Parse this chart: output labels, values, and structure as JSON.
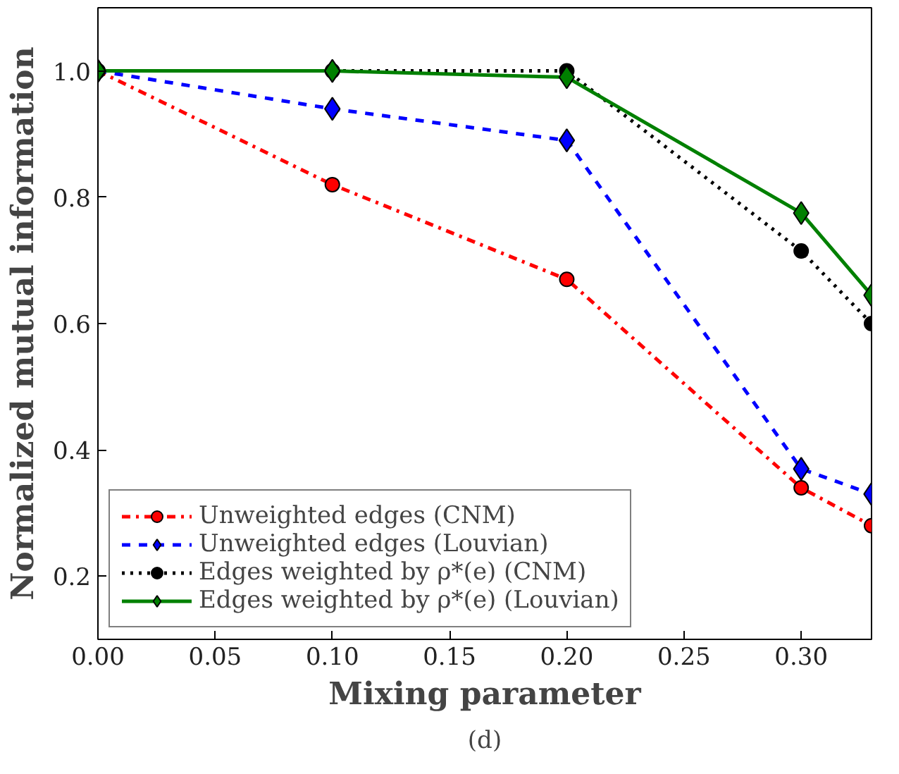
{
  "chart_data": {
    "type": "line",
    "xlabel": "Mixing parameter",
    "ylabel": "Normalized mutual information",
    "annotations": [
      "(d)"
    ],
    "x": [
      0.0,
      0.1,
      0.2,
      0.3,
      0.33
    ],
    "series": [
      {
        "name": "Unweighted edges (CNM)",
        "color": "#ff0000",
        "values": [
          1.0,
          0.82,
          0.67,
          0.34,
          0.28
        ],
        "marker": "circle",
        "line_style": "dashdot"
      },
      {
        "name": "Unweighted edges (Louvian)",
        "color": "#0000ff",
        "values": [
          1.0,
          0.94,
          0.89,
          0.37,
          0.33
        ],
        "marker": "diamond",
        "line_style": "dashed"
      },
      {
        "name": "Edges weighted by ρ*(e) (CNM)",
        "color": "#000000",
        "values": [
          1.0,
          1.0,
          1.0,
          0.715,
          0.6
        ],
        "marker": "circle",
        "line_style": "dotted"
      },
      {
        "name": "Edges weighted by ρ*(e) (Louvian)",
        "color": "#008000",
        "values": [
          1.0,
          1.0,
          0.99,
          0.775,
          0.645
        ],
        "marker": "diamond",
        "line_style": "solid"
      }
    ],
    "xlim": [
      0.0,
      0.33
    ],
    "ylim": [
      0.1,
      1.1
    ],
    "xticks": [
      {
        "value": 0.0,
        "label": "0.00"
      },
      {
        "value": 0.05,
        "label": "0.05"
      },
      {
        "value": 0.1,
        "label": "0.10"
      },
      {
        "value": 0.15,
        "label": "0.15"
      },
      {
        "value": 0.2,
        "label": "0.20"
      },
      {
        "value": 0.25,
        "label": "0.25"
      },
      {
        "value": 0.3,
        "label": "0.30"
      }
    ],
    "yticks": [
      {
        "value": 0.2,
        "label": "0.2"
      },
      {
        "value": 0.4,
        "label": "0.4"
      },
      {
        "value": 0.6,
        "label": "0.6"
      },
      {
        "value": 0.8,
        "label": "0.8"
      },
      {
        "value": 1.0,
        "label": "1.0"
      }
    ],
    "grid": false,
    "legend": "bottom left"
  }
}
